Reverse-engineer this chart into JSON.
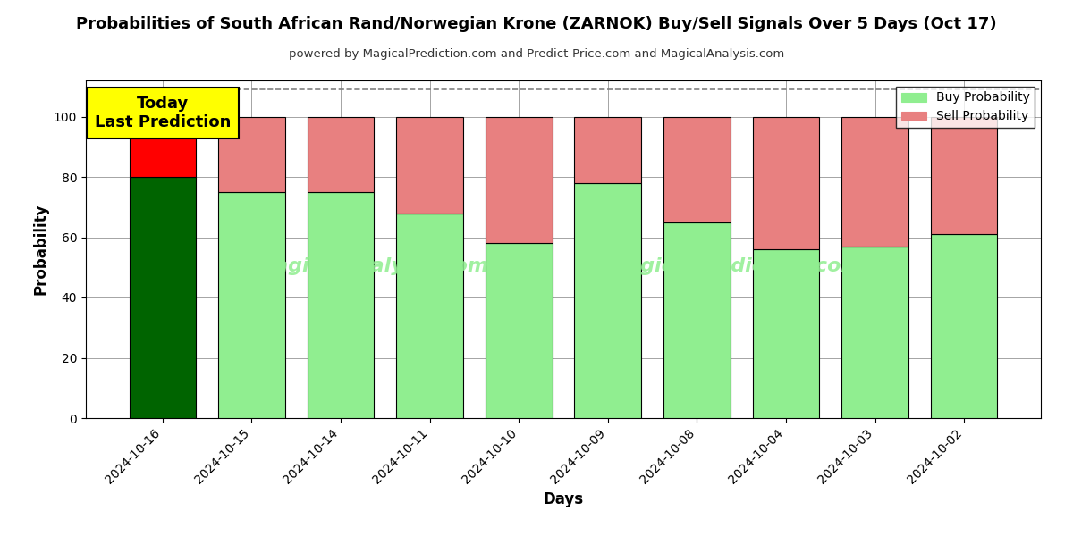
{
  "title": "Probabilities of South African Rand/Norwegian Krone (ZARNOK) Buy/Sell Signals Over 5 Days (Oct 17)",
  "subtitle": "powered by MagicalPrediction.com and Predict-Price.com and MagicalAnalysis.com",
  "xlabel": "Days",
  "ylabel": "Probability",
  "categories": [
    "2024-10-16",
    "2024-10-15",
    "2024-10-14",
    "2024-10-11",
    "2024-10-10",
    "2024-10-09",
    "2024-10-08",
    "2024-10-04",
    "2024-10-03",
    "2024-10-02"
  ],
  "buy_values": [
    80,
    75,
    75,
    68,
    58,
    78,
    65,
    56,
    57,
    61
  ],
  "sell_values": [
    20,
    25,
    25,
    32,
    42,
    22,
    35,
    44,
    43,
    39
  ],
  "today_bar_buy_color": "#006400",
  "today_bar_sell_color": "#FF0000",
  "other_bar_buy_color": "#90EE90",
  "other_bar_sell_color": "#E88080",
  "today_annotation_bg": "#FFFF00",
  "today_annotation_text": "Today\nLast Prediction",
  "ylim": [
    0,
    112
  ],
  "yticks": [
    0,
    20,
    40,
    60,
    80,
    100
  ],
  "dashed_line_y": 109,
  "legend_buy_label": "Buy Probability",
  "legend_sell_label": "Sell Probability",
  "figsize": [
    12.0,
    6.0
  ],
  "dpi": 100
}
